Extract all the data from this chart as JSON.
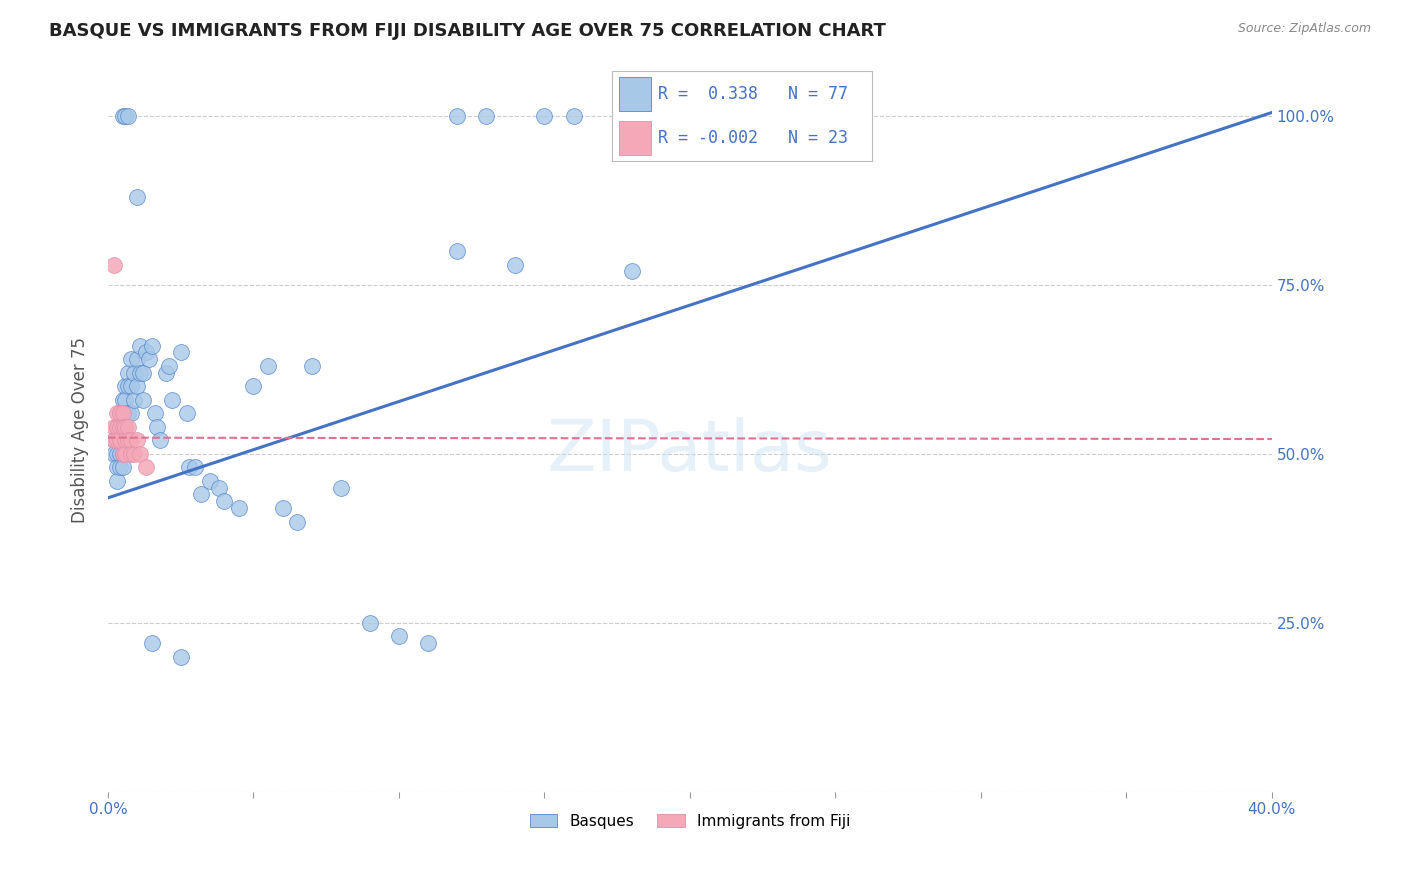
{
  "title": "BASQUE VS IMMIGRANTS FROM FIJI DISABILITY AGE OVER 75 CORRELATION CHART",
  "source": "Source: ZipAtlas.com",
  "ylabel": "Disability Age Over 75",
  "xlim": [
    0.0,
    0.4
  ],
  "ylim": [
    0.0,
    1.07
  ],
  "legend_blue_r": "0.338",
  "legend_blue_n": "77",
  "legend_pink_r": "-0.002",
  "legend_pink_n": "23",
  "blue_color": "#a8c8e8",
  "pink_color": "#f4a8b8",
  "blue_line_color": "#4472c4",
  "pink_line_color": "#e07090",
  "blue_scatter_edge": "#5585cc",
  "pink_scatter_edge": "#e090a8",
  "basque_x": [
    0.002,
    0.002,
    0.003,
    0.003,
    0.003,
    0.003,
    0.003,
    0.004,
    0.004,
    0.004,
    0.004,
    0.004,
    0.005,
    0.005,
    0.005,
    0.005,
    0.005,
    0.005,
    0.006,
    0.006,
    0.006,
    0.006,
    0.006,
    0.007,
    0.007,
    0.007,
    0.008,
    0.008,
    0.008,
    0.009,
    0.009,
    0.01,
    0.01,
    0.011,
    0.011,
    0.012,
    0.012,
    0.013,
    0.014,
    0.015,
    0.016,
    0.017,
    0.018,
    0.02,
    0.021,
    0.022,
    0.025,
    0.027,
    0.028,
    0.03,
    0.032,
    0.035,
    0.038,
    0.04,
    0.045,
    0.05,
    0.055,
    0.06,
    0.065,
    0.07,
    0.08,
    0.09,
    0.1,
    0.11,
    0.12,
    0.13,
    0.15,
    0.16,
    0.18,
    0.12,
    0.14,
    0.005,
    0.006,
    0.007,
    0.01,
    0.015,
    0.025
  ],
  "basque_y": [
    0.52,
    0.5,
    0.54,
    0.52,
    0.5,
    0.48,
    0.46,
    0.56,
    0.54,
    0.52,
    0.5,
    0.48,
    0.58,
    0.56,
    0.54,
    0.52,
    0.5,
    0.48,
    0.6,
    0.58,
    0.56,
    0.54,
    0.52,
    0.62,
    0.6,
    0.56,
    0.64,
    0.6,
    0.56,
    0.62,
    0.58,
    0.64,
    0.6,
    0.66,
    0.62,
    0.62,
    0.58,
    0.65,
    0.64,
    0.66,
    0.56,
    0.54,
    0.52,
    0.62,
    0.63,
    0.58,
    0.65,
    0.56,
    0.48,
    0.48,
    0.44,
    0.46,
    0.45,
    0.43,
    0.42,
    0.6,
    0.63,
    0.42,
    0.4,
    0.63,
    0.45,
    0.25,
    0.23,
    0.22,
    1.0,
    1.0,
    1.0,
    1.0,
    0.77,
    0.8,
    0.78,
    1.0,
    1.0,
    1.0,
    0.88,
    0.22,
    0.2
  ],
  "fiji_x": [
    0.002,
    0.002,
    0.003,
    0.003,
    0.003,
    0.004,
    0.004,
    0.004,
    0.005,
    0.005,
    0.005,
    0.006,
    0.006,
    0.006,
    0.007,
    0.007,
    0.008,
    0.008,
    0.009,
    0.01,
    0.011,
    0.013,
    0.002
  ],
  "fiji_y": [
    0.54,
    0.52,
    0.56,
    0.54,
    0.52,
    0.56,
    0.54,
    0.52,
    0.56,
    0.54,
    0.5,
    0.54,
    0.52,
    0.5,
    0.54,
    0.52,
    0.52,
    0.5,
    0.5,
    0.52,
    0.5,
    0.48,
    0.78
  ],
  "blue_trendline_x": [
    0.0,
    0.4
  ],
  "blue_trendline_y": [
    0.435,
    1.005
  ],
  "pink_trendline_x": [
    0.0,
    0.4
  ],
  "pink_trendline_y": [
    0.524,
    0.522
  ]
}
